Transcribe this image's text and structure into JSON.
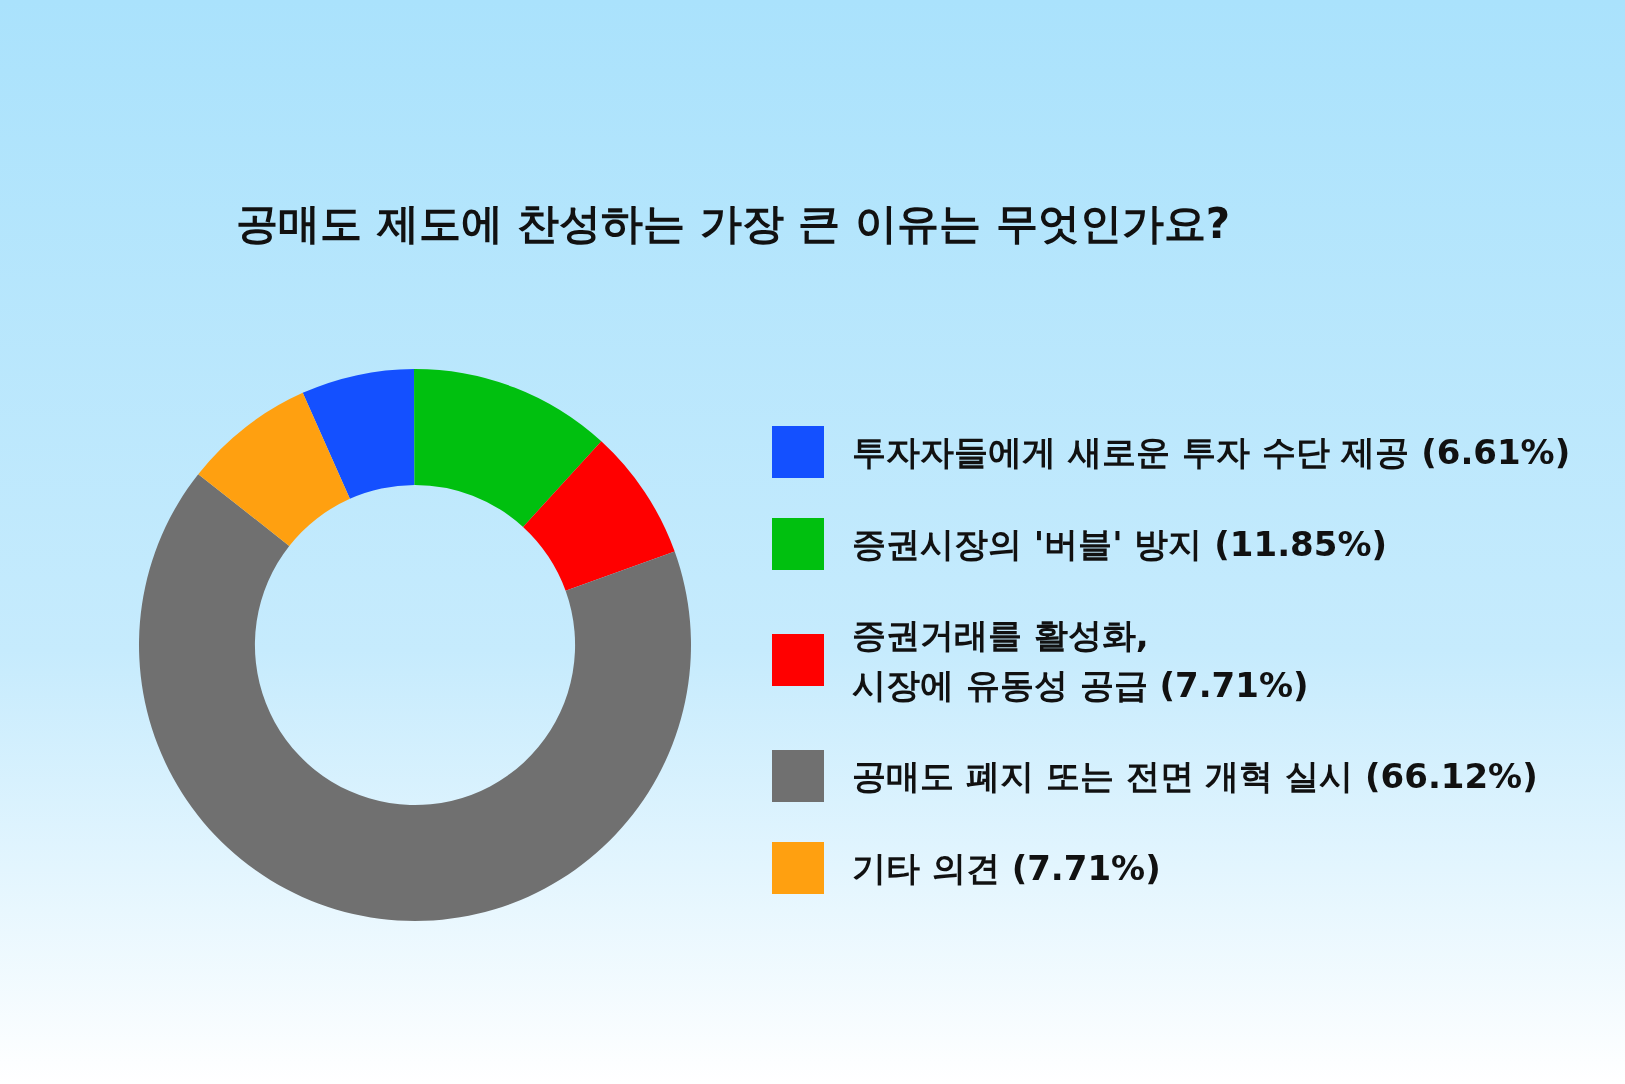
{
  "chart_data": {
    "type": "donut",
    "title": "공매도 제도에 찬성하는 가장 큰 이유는 무엇인가요?",
    "categories": [
      "투자자들에게 새로운 투자 수단 제공 (6.61%)",
      "증권시장의 '버블' 방지 (11.85%)",
      "증권거래를 활성화,\n시장에 유동성 공급 (7.71%)",
      "공매도 폐지 또는 전면 개혁 실시 (66.12%)",
      "기타 의견 (7.71%)"
    ],
    "values": [
      6.61,
      11.85,
      7.71,
      66.12,
      7.71
    ],
    "colors": [
      "#1450ff",
      "#00c00f",
      "#ff0000",
      "#707070",
      "#ffa010"
    ],
    "legend": "right"
  }
}
